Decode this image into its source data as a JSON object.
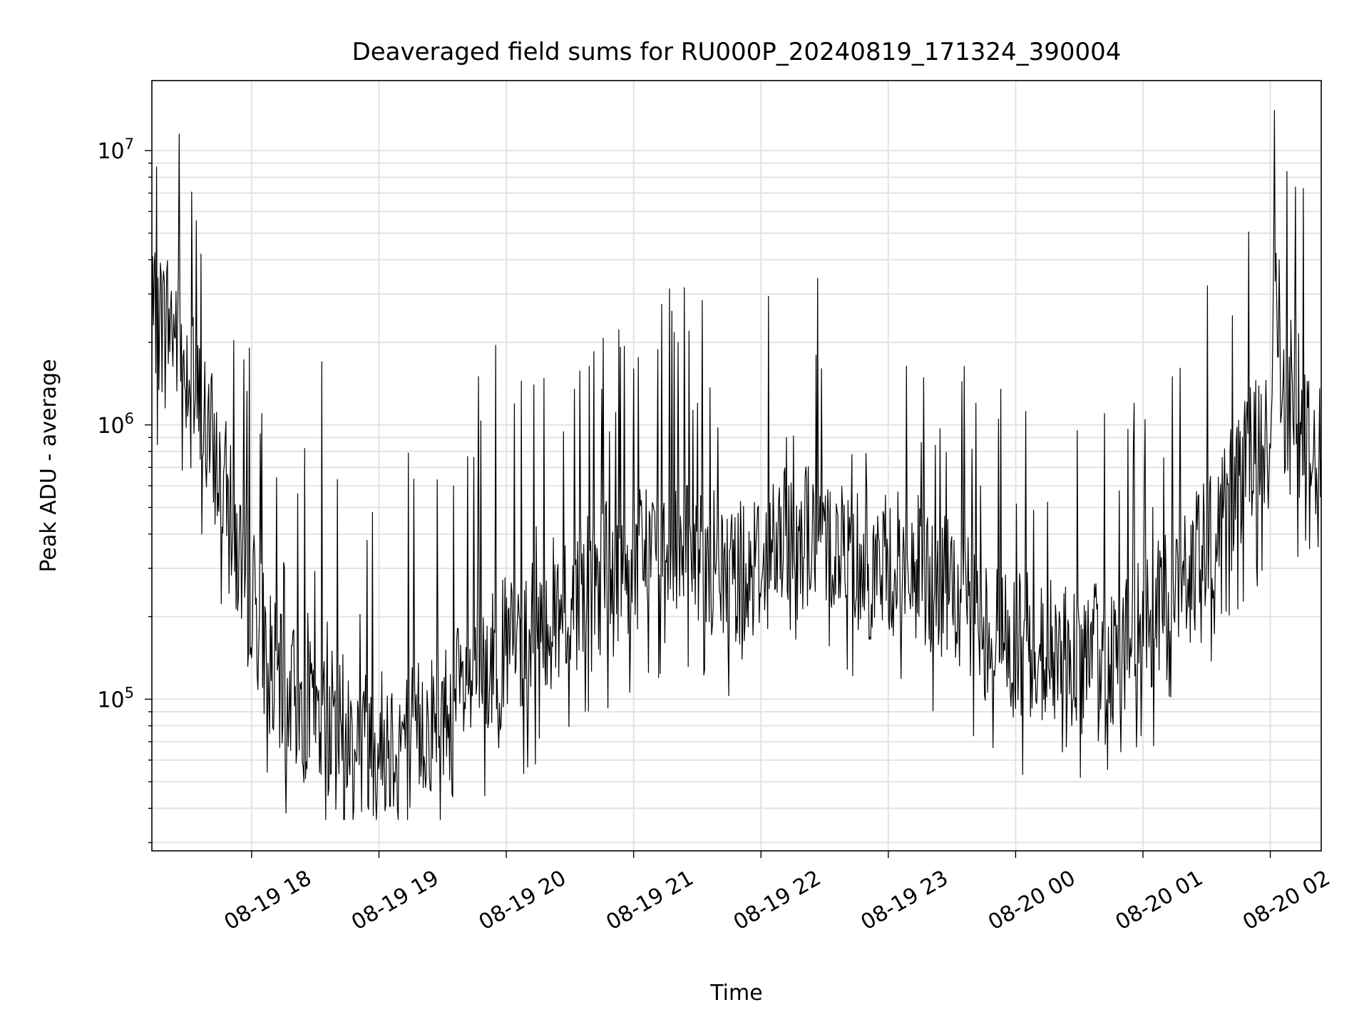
{
  "chart_data": {
    "type": "line",
    "title": "Deaveraged field sums for RU000P_20240819_171324_390004",
    "xlabel": "Time",
    "ylabel": "Peak ADU - average",
    "y_scale": "log",
    "ylim": [
      28000,
      18000000
    ],
    "xlim": [
      "2024-08-19 17:13",
      "2024-08-20 02:24"
    ],
    "grid": true,
    "line_color": "#000000",
    "x_ticks": [
      {
        "value": "2024-08-19 18:00",
        "label": "08-19 18"
      },
      {
        "value": "2024-08-19 19:00",
        "label": "08-19 19"
      },
      {
        "value": "2024-08-19 20:00",
        "label": "08-19 20"
      },
      {
        "value": "2024-08-19 21:00",
        "label": "08-19 21"
      },
      {
        "value": "2024-08-19 22:00",
        "label": "08-19 22"
      },
      {
        "value": "2024-08-19 23:00",
        "label": "08-19 23"
      },
      {
        "value": "2024-08-20 00:00",
        "label": "08-20 00"
      },
      {
        "value": "2024-08-20 01:00",
        "label": "08-20 01"
      },
      {
        "value": "2024-08-20 02:00",
        "label": "08-20 02"
      }
    ],
    "y_ticks": [
      {
        "value": 100000,
        "base": "10",
        "exp": "5"
      },
      {
        "value": 1000000,
        "base": "10",
        "exp": "6"
      },
      {
        "value": 10000000,
        "base": "10",
        "exp": "7"
      }
    ],
    "series": [
      {
        "x": [
          "2024-08-19 17:13",
          "2024-08-19 17:20",
          "2024-08-19 17:27",
          "2024-08-19 17:33",
          "2024-08-19 17:40",
          "2024-08-19 17:47",
          "2024-08-19 17:53",
          "2024-08-19 18:00",
          "2024-08-19 18:07",
          "2024-08-19 18:13",
          "2024-08-19 18:20",
          "2024-08-19 18:27",
          "2024-08-19 18:33",
          "2024-08-19 18:40",
          "2024-08-19 18:47",
          "2024-08-19 18:53",
          "2024-08-19 19:00",
          "2024-08-19 19:07",
          "2024-08-19 19:13",
          "2024-08-19 19:20",
          "2024-08-19 19:27",
          "2024-08-19 19:33",
          "2024-08-19 19:40",
          "2024-08-19 19:47",
          "2024-08-19 19:53",
          "2024-08-19 20:00",
          "2024-08-19 20:07",
          "2024-08-19 20:13",
          "2024-08-19 20:20",
          "2024-08-19 20:27",
          "2024-08-19 20:33",
          "2024-08-19 20:40",
          "2024-08-19 20:47",
          "2024-08-19 20:53",
          "2024-08-19 21:00",
          "2024-08-19 21:07",
          "2024-08-19 21:13",
          "2024-08-19 21:20",
          "2024-08-19 21:27",
          "2024-08-19 21:33",
          "2024-08-19 21:40",
          "2024-08-19 21:47",
          "2024-08-19 21:53",
          "2024-08-19 22:00",
          "2024-08-19 22:07",
          "2024-08-19 22:13",
          "2024-08-19 22:20",
          "2024-08-19 22:27",
          "2024-08-19 22:33",
          "2024-08-19 22:40",
          "2024-08-19 22:47",
          "2024-08-19 22:53",
          "2024-08-19 23:00",
          "2024-08-19 23:07",
          "2024-08-19 23:13",
          "2024-08-19 23:20",
          "2024-08-19 23:27",
          "2024-08-19 23:33",
          "2024-08-19 23:40",
          "2024-08-19 23:47",
          "2024-08-19 23:53",
          "2024-08-20 00:00",
          "2024-08-20 00:07",
          "2024-08-20 00:13",
          "2024-08-20 00:20",
          "2024-08-20 00:27",
          "2024-08-20 00:33",
          "2024-08-20 00:40",
          "2024-08-20 00:47",
          "2024-08-20 00:53",
          "2024-08-20 01:00",
          "2024-08-20 01:07",
          "2024-08-20 01:13",
          "2024-08-20 01:20",
          "2024-08-20 01:27",
          "2024-08-20 01:33",
          "2024-08-20 01:40",
          "2024-08-20 01:47",
          "2024-08-20 01:53",
          "2024-08-20 02:00",
          "2024-08-20 02:02",
          "2024-08-20 02:07",
          "2024-08-20 02:13",
          "2024-08-20 02:20",
          "2024-08-20 02:24"
        ],
        "values": [
          2200000,
          2500000,
          2000000,
          1300000,
          900000,
          600000,
          350000,
          250000,
          150000,
          110000,
          100000,
          90000,
          85000,
          80000,
          75000,
          72000,
          70000,
          72000,
          75000,
          78000,
          85000,
          95000,
          105000,
          120000,
          135000,
          150000,
          165000,
          180000,
          200000,
          220000,
          240000,
          260000,
          280000,
          300000,
          320000,
          340000,
          360000,
          370000,
          350000,
          320000,
          300000,
          290000,
          300000,
          320000,
          350000,
          380000,
          400000,
          400000,
          380000,
          350000,
          320000,
          300000,
          300000,
          310000,
          300000,
          280000,
          250000,
          220000,
          200000,
          180000,
          170000,
          160000,
          155000,
          150000,
          145000,
          140000,
          140000,
          145000,
          150000,
          160000,
          180000,
          200000,
          230000,
          270000,
          320000,
          400000,
          500000,
          650000,
          800000,
          850000,
          4000000,
          1000000,
          900000,
          850000,
          900000
        ],
        "spikes": [
          {
            "x": "2024-08-19 17:26",
            "value": 11500000
          },
          {
            "x": "2024-08-19 17:36",
            "value": 4200000
          },
          {
            "x": "2024-08-19 18:25",
            "value": 820000
          },
          {
            "x": "2024-08-19 18:33",
            "value": 1700000
          },
          {
            "x": "2024-08-19 18:57",
            "value": 480000
          },
          {
            "x": "2024-08-19 19:14",
            "value": 790000
          },
          {
            "x": "2024-08-19 19:47",
            "value": 1500000
          },
          {
            "x": "2024-08-19 19:55",
            "value": 1950000
          },
          {
            "x": "2024-08-19 20:13",
            "value": 1400000
          },
          {
            "x": "2024-08-19 20:32",
            "value": 1350000
          },
          {
            "x": "2024-08-19 20:45",
            "value": 1350000
          },
          {
            "x": "2024-08-19 21:00",
            "value": 1600000
          },
          {
            "x": "2024-08-19 21:18",
            "value": 2600000
          },
          {
            "x": "2024-08-19 21:21",
            "value": 2000000
          },
          {
            "x": "2024-08-19 21:26",
            "value": 2200000
          },
          {
            "x": "2024-08-19 22:12",
            "value": 900000
          },
          {
            "x": "2024-08-19 22:43",
            "value": 780000
          },
          {
            "x": "2024-08-19 23:53",
            "value": 1350000
          },
          {
            "x": "2024-08-20 00:42",
            "value": 1100000
          },
          {
            "x": "2024-08-20 00:56",
            "value": 1200000
          },
          {
            "x": "2024-08-20 01:14",
            "value": 1500000
          },
          {
            "x": "2024-08-20 01:42",
            "value": 2500000
          },
          {
            "x": "2024-08-20 02:02",
            "value": 14000000
          },
          {
            "x": "2024-08-20 02:04",
            "value": 4000000
          }
        ]
      }
    ]
  }
}
